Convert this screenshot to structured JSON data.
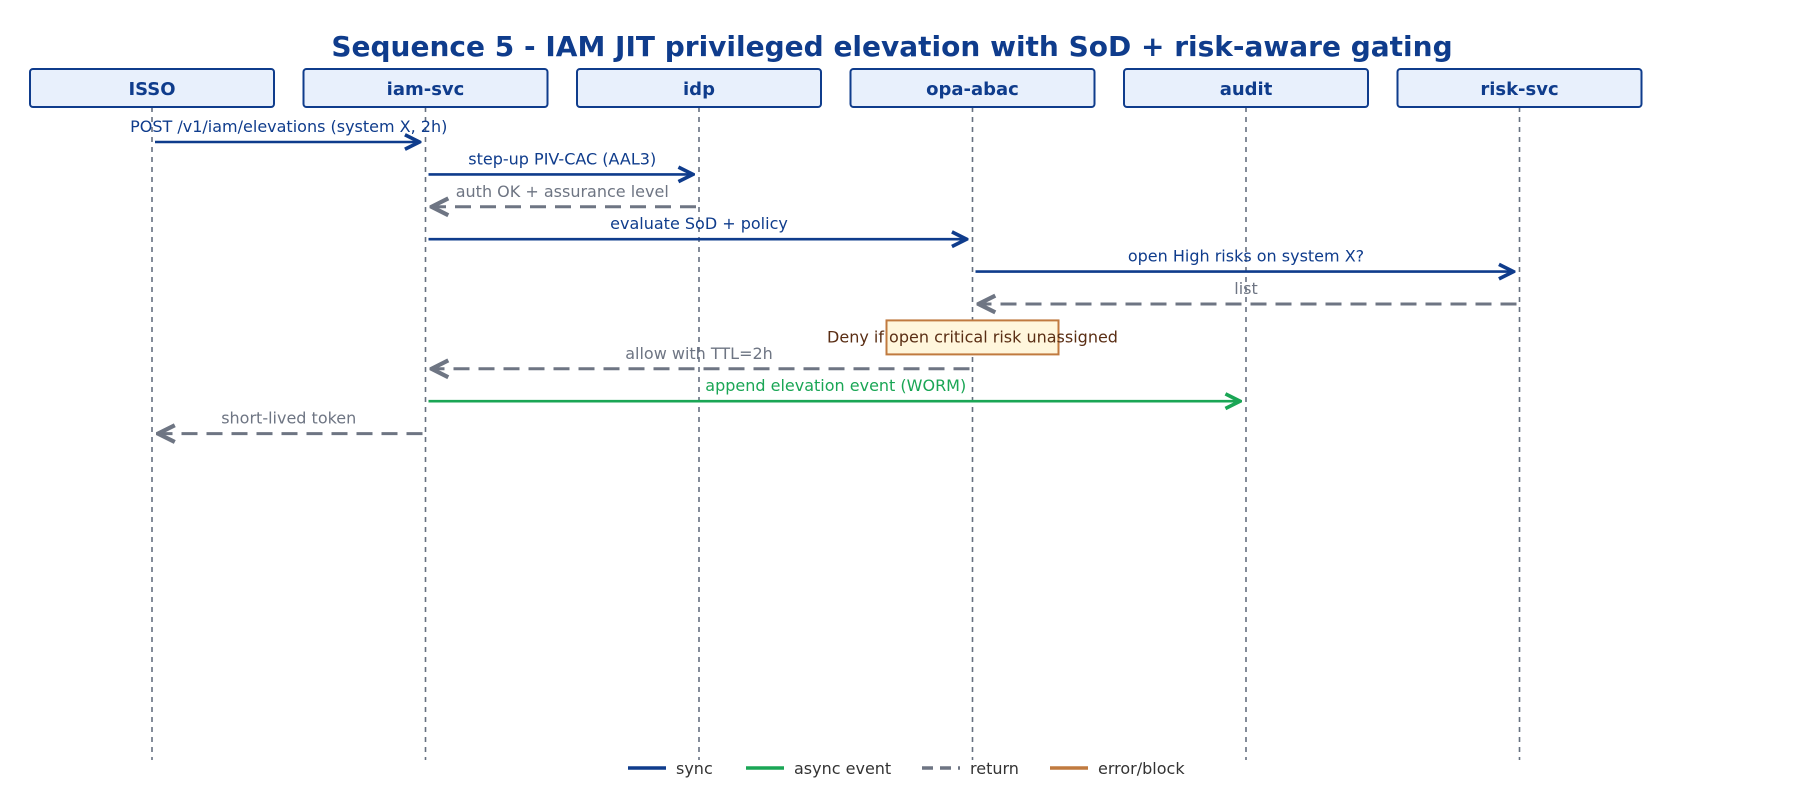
{
  "title": "Sequence 5 - IAM JIT privileged elevation with SoD + risk-aware gating",
  "colors": {
    "sync": "#0f3c8c",
    "async": "#1aa655",
    "return": "#6e7583",
    "error": "#c07a3f",
    "actor_fill": "#e8f0fc",
    "actor_stroke": "#0f3c8c"
  },
  "actors": [
    {
      "id": "isso",
      "label": "ISSO"
    },
    {
      "id": "iam-svc",
      "label": "iam-svc"
    },
    {
      "id": "idp",
      "label": "idp"
    },
    {
      "id": "opa-abac",
      "label": "opa-abac"
    },
    {
      "id": "audit",
      "label": "audit"
    },
    {
      "id": "risk-svc",
      "label": "risk-svc"
    }
  ],
  "messages": [
    {
      "from": 0,
      "to": 1,
      "kind": "sync",
      "label": "POST /v1/iam/elevations (system X, 2h)"
    },
    {
      "from": 1,
      "to": 2,
      "kind": "sync",
      "label": "step-up PIV-CAC (AAL3)"
    },
    {
      "from": 2,
      "to": 1,
      "kind": "return",
      "label": "auth OK + assurance level"
    },
    {
      "from": 1,
      "to": 3,
      "kind": "sync",
      "label": "evaluate SoD + policy"
    },
    {
      "from": 3,
      "to": 5,
      "kind": "sync",
      "label": "open High risks on system X?"
    },
    {
      "from": 5,
      "to": 3,
      "kind": "return",
      "label": "list"
    },
    {
      "kind": "note",
      "over": 3,
      "label": "Deny if open critical risk unassigned"
    },
    {
      "from": 3,
      "to": 1,
      "kind": "return",
      "label": "allow with TTL=2h"
    },
    {
      "from": 1,
      "to": 4,
      "kind": "async",
      "label": "append elevation event (WORM)"
    },
    {
      "from": 1,
      "to": 0,
      "kind": "return",
      "label": "short-lived token"
    }
  ],
  "legend": [
    {
      "kind": "sync",
      "label": "sync"
    },
    {
      "kind": "async",
      "label": "async event"
    },
    {
      "kind": "return",
      "label": "return"
    },
    {
      "kind": "error",
      "label": "error/block"
    }
  ]
}
